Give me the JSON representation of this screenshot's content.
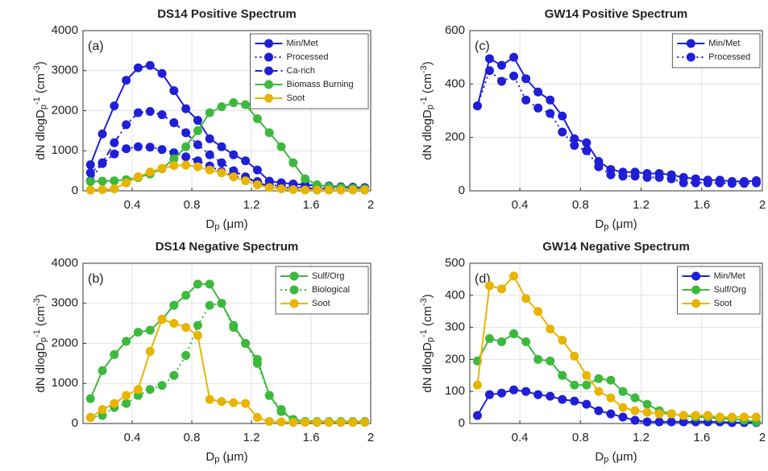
{
  "chart_data": [
    {
      "type": "line",
      "title": "DS14 Positive Spectrum",
      "annotation": "(a)",
      "xlabel": [
        "D",
        "p",
        " (μm)"
      ],
      "ylabel": [
        "dN dlogD",
        "p",
        "-1",
        " (cm",
        "-3",
        ")"
      ],
      "x": [
        0.12,
        0.2,
        0.28,
        0.36,
        0.44,
        0.52,
        0.6,
        0.68,
        0.76,
        0.84,
        0.92,
        1.0,
        1.08,
        1.16,
        1.24,
        1.32,
        1.4,
        1.48,
        1.56,
        1.64,
        1.72,
        1.8,
        1.88,
        1.96
      ],
      "xlim": [
        0.07,
        2
      ],
      "xticks": [
        0.4,
        0.8,
        1.2,
        1.6,
        2
      ],
      "ylim": [
        0,
        4000
      ],
      "yticks": [
        0,
        1000,
        2000,
        3000,
        4000
      ],
      "grid": true,
      "legend": "upper right",
      "series": [
        {
          "name": "Min/Met",
          "color": "#1f1fd6",
          "linestyle": "solid",
          "values": [
            650,
            1420,
            2120,
            2760,
            3070,
            3130,
            2930,
            2500,
            2050,
            1760,
            1300,
            1100,
            900,
            750,
            520,
            240,
            200,
            170,
            150,
            130,
            120,
            100,
            90,
            80
          ]
        },
        {
          "name": "Processed",
          "color": "#1f1fd6",
          "linestyle": "dotted",
          "values": [
            450,
            680,
            920,
            1050,
            1100,
            1090,
            1030,
            950,
            850,
            750,
            620,
            480,
            380,
            300,
            230,
            150,
            120,
            100,
            80,
            70,
            60,
            50,
            40,
            30
          ]
        },
        {
          "name": "Ca-rich",
          "color": "#1f1fd6",
          "linestyle": "dashdot",
          "values": [
            250,
            700,
            1200,
            1650,
            1950,
            1980,
            1900,
            1700,
            1450,
            1150,
            900,
            700,
            500,
            350,
            200,
            120,
            90,
            70,
            60,
            50,
            40,
            30,
            30,
            20
          ]
        },
        {
          "name": "Biomass Burning",
          "color": "#3cb93c",
          "linestyle": "solid",
          "values": [
            230,
            240,
            250,
            280,
            330,
            420,
            550,
            800,
            1100,
            1500,
            1950,
            2100,
            2200,
            2150,
            1800,
            1450,
            1100,
            700,
            300,
            150,
            100,
            80,
            60,
            50
          ]
        },
        {
          "name": "Soot",
          "color": "#e8b400",
          "linestyle": "solid",
          "values": [
            20,
            30,
            50,
            200,
            350,
            470,
            560,
            630,
            640,
            600,
            520,
            450,
            350,
            250,
            150,
            80,
            50,
            30,
            20,
            20,
            20,
            20,
            20,
            20
          ]
        }
      ]
    },
    {
      "type": "line",
      "title": "GW14 Positive Spectrum",
      "annotation": "(c)",
      "xlabel": [
        "D",
        "p",
        " (μm)"
      ],
      "ylabel": [
        "dN dlogD",
        "p",
        "-1",
        " (cm",
        "-3",
        ")"
      ],
      "x": [
        0.12,
        0.2,
        0.28,
        0.36,
        0.44,
        0.52,
        0.6,
        0.68,
        0.76,
        0.84,
        0.92,
        1.0,
        1.08,
        1.16,
        1.24,
        1.32,
        1.4,
        1.48,
        1.56,
        1.64,
        1.72,
        1.8,
        1.88,
        1.96
      ],
      "xlim": [
        0.07,
        2
      ],
      "xticks": [
        0.4,
        0.8,
        1.2,
        1.6,
        2
      ],
      "ylim": [
        0,
        600
      ],
      "yticks": [
        0,
        200,
        400,
        600
      ],
      "grid": true,
      "legend": "upper right",
      "series": [
        {
          "name": "Min/Met",
          "color": "#1f1fd6",
          "linestyle": "solid",
          "values": [
            318,
            495,
            470,
            500,
            420,
            370,
            340,
            280,
            195,
            180,
            110,
            80,
            70,
            70,
            65,
            65,
            60,
            50,
            45,
            40,
            40,
            35,
            35,
            38
          ]
        },
        {
          "name": "Processed",
          "color": "#1f1fd6",
          "linestyle": "dotted",
          "values": [
            318,
            450,
            410,
            430,
            340,
            310,
            290,
            220,
            170,
            150,
            90,
            60,
            55,
            55,
            50,
            50,
            45,
            30,
            30,
            30,
            30,
            28,
            28,
            30
          ]
        }
      ]
    },
    {
      "type": "line",
      "title": "DS14 Negative Spectrum",
      "annotation": "(b)",
      "xlabel": [
        "D",
        "p",
        " (μm)"
      ],
      "ylabel": [
        "dN dlogD",
        "p",
        "-1",
        " (cm",
        "-3",
        ")"
      ],
      "x": [
        0.12,
        0.2,
        0.28,
        0.36,
        0.44,
        0.52,
        0.6,
        0.68,
        0.76,
        0.84,
        0.92,
        1.0,
        1.08,
        1.16,
        1.24,
        1.32,
        1.4,
        1.48,
        1.56,
        1.64,
        1.72,
        1.8,
        1.88,
        1.96
      ],
      "xlim": [
        0.07,
        2
      ],
      "xticks": [
        0.4,
        0.8,
        1.2,
        1.6,
        2
      ],
      "ylim": [
        0,
        4000
      ],
      "yticks": [
        0,
        1000,
        2000,
        3000,
        4000
      ],
      "grid": true,
      "legend": "upper right",
      "series": [
        {
          "name": "Sulf/Org",
          "color": "#3cb93c",
          "linestyle": "solid",
          "values": [
            620,
            1320,
            1720,
            2050,
            2280,
            2330,
            2600,
            2950,
            3200,
            3480,
            3480,
            3000,
            2450,
            2000,
            1600,
            700,
            300,
            100,
            50,
            50,
            50,
            50,
            50,
            50
          ]
        },
        {
          "name": "Biological",
          "color": "#3cb93c",
          "linestyle": "dotted",
          "values": [
            150,
            200,
            400,
            500,
            700,
            850,
            950,
            1200,
            1700,
            2450,
            2950,
            3000,
            2400,
            2000,
            1500,
            700,
            350,
            100,
            50,
            30,
            30,
            30,
            30,
            30
          ]
        },
        {
          "name": "Soot",
          "color": "#e8b400",
          "linestyle": "solid",
          "values": [
            150,
            350,
            500,
            700,
            850,
            1800,
            2600,
            2500,
            2400,
            2200,
            600,
            550,
            520,
            500,
            150,
            50,
            40,
            30,
            30,
            30,
            30,
            30,
            30,
            30
          ]
        }
      ]
    },
    {
      "type": "line",
      "title": "GW14 Negative Spectrum",
      "annotation": "(d)",
      "xlabel": [
        "D",
        "p",
        " (μm)"
      ],
      "ylabel": [
        "dN dlogD",
        "p",
        "-1",
        " (cm",
        "-3",
        ")"
      ],
      "x": [
        0.12,
        0.2,
        0.28,
        0.36,
        0.44,
        0.52,
        0.6,
        0.68,
        0.76,
        0.84,
        0.92,
        1.0,
        1.08,
        1.16,
        1.24,
        1.32,
        1.4,
        1.48,
        1.56,
        1.64,
        1.72,
        1.8,
        1.88,
        1.96
      ],
      "xlim": [
        0.07,
        2
      ],
      "xticks": [
        0.4,
        0.8,
        1.2,
        1.6,
        2
      ],
      "ylim": [
        0,
        500
      ],
      "yticks": [
        0,
        100,
        200,
        300,
        400,
        500
      ],
      "grid": true,
      "legend": "upper right",
      "series": [
        {
          "name": "Min/Met",
          "color": "#1f1fd6",
          "linestyle": "solid",
          "values": [
            25,
            90,
            95,
            105,
            100,
            90,
            85,
            75,
            70,
            60,
            40,
            30,
            20,
            10,
            5,
            5,
            5,
            5,
            5,
            5,
            5,
            3,
            3,
            3
          ]
        },
        {
          "name": "Sulf/Org",
          "color": "#3cb93c",
          "linestyle": "solid",
          "values": [
            195,
            265,
            255,
            280,
            255,
            200,
            195,
            150,
            120,
            120,
            140,
            135,
            100,
            80,
            60,
            40,
            30,
            25,
            20,
            20,
            15,
            15,
            10,
            5
          ]
        },
        {
          "name": "Soot",
          "color": "#e8b400",
          "linestyle": "solid",
          "values": [
            120,
            430,
            420,
            460,
            390,
            350,
            295,
            260,
            210,
            150,
            100,
            80,
            50,
            40,
            35,
            30,
            30,
            25,
            25,
            25,
            20,
            20,
            20,
            20
          ]
        }
      ]
    }
  ]
}
